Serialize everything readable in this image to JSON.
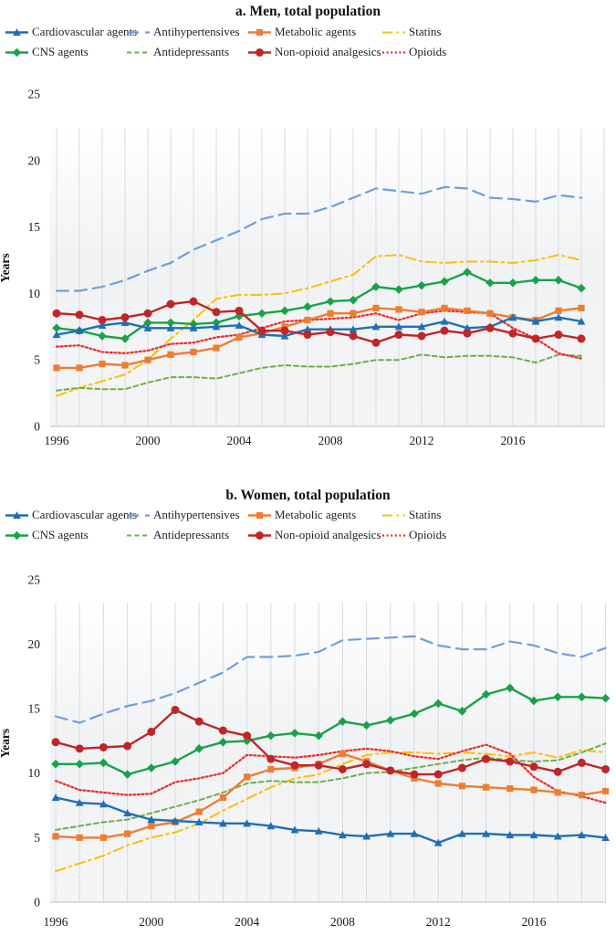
{
  "page": {
    "background": "#ffffff",
    "grid_color": "#d8dbde",
    "axis_color": "#c6cbd0"
  },
  "chart_data": [
    {
      "type": "line",
      "title": "a. Men, total population",
      "ylabel": "Years",
      "xlabel": "",
      "x": [
        1996,
        1997,
        1998,
        1999,
        2000,
        2001,
        2002,
        2003,
        2004,
        2005,
        2006,
        2007,
        2008,
        2009,
        2010,
        2011,
        2012,
        2013,
        2014,
        2015,
        2016,
        2017,
        2018,
        2019
      ],
      "xticks": [
        1996,
        2000,
        2004,
        2008,
        2012,
        2016
      ],
      "yticks": [
        0,
        5,
        10,
        15,
        20,
        25
      ],
      "ylim": [
        0,
        25
      ],
      "grid": "vertical",
      "legend_position": "top",
      "series": [
        {
          "name": "Cardiovascular agents",
          "color": "#1f6fb5",
          "marker": "triangle",
          "dash": "",
          "width": 2.4,
          "values": [
            6.9,
            7.2,
            7.6,
            7.8,
            7.4,
            7.4,
            7.4,
            7.5,
            7.6,
            6.9,
            6.8,
            7.3,
            7.3,
            7.3,
            7.5,
            7.5,
            7.5,
            7.9,
            7.4,
            7.5,
            8.2,
            7.9,
            8.2,
            7.9
          ]
        },
        {
          "name": "Antihypertensives",
          "color": "#6f9fd8",
          "marker": "",
          "dash": "13 7",
          "width": 2.2,
          "values": [
            10.2,
            10.2,
            10.5,
            11.0,
            11.7,
            12.3,
            13.3,
            14.0,
            14.7,
            15.6,
            16.0,
            16.0,
            16.5,
            17.2,
            17.9,
            17.7,
            17.5,
            18.0,
            17.9,
            17.2,
            17.1,
            16.9,
            17.4,
            17.2
          ]
        },
        {
          "name": "Metabolic agents",
          "color": "#ee7d31",
          "marker": "square",
          "dash": "",
          "width": 2.4,
          "values": [
            4.4,
            4.4,
            4.7,
            4.6,
            5.0,
            5.4,
            5.6,
            5.9,
            6.7,
            7.0,
            7.5,
            8.0,
            8.5,
            8.5,
            8.9,
            8.8,
            8.6,
            8.9,
            8.7,
            8.5,
            8.2,
            8.0,
            8.7,
            8.9
          ]
        },
        {
          "name": "Statins",
          "color": "#fdc010",
          "marker": "",
          "dash": "11 4.5 2.5 4.5",
          "width": 2.1,
          "values": [
            2.3,
            2.9,
            3.4,
            3.9,
            5.0,
            6.6,
            8.0,
            9.6,
            9.9,
            9.9,
            10.0,
            10.4,
            10.9,
            11.4,
            12.8,
            12.9,
            12.4,
            12.3,
            12.4,
            12.4,
            12.3,
            12.5,
            12.9,
            12.5
          ]
        },
        {
          "name": "CNS agents",
          "color": "#19a24a",
          "marker": "diamond",
          "dash": "",
          "width": 2.4,
          "values": [
            7.4,
            7.2,
            6.8,
            6.6,
            7.8,
            7.8,
            7.7,
            7.8,
            8.3,
            8.5,
            8.7,
            9.0,
            9.4,
            9.5,
            10.5,
            10.3,
            10.6,
            10.9,
            11.6,
            10.8,
            10.8,
            11.0,
            11.0,
            10.4
          ]
        },
        {
          "name": "Antidepressants",
          "color": "#6fae49",
          "marker": "",
          "dash": "5 3.5",
          "width": 2.0,
          "values": [
            2.7,
            2.9,
            2.8,
            2.8,
            3.3,
            3.7,
            3.7,
            3.6,
            4.0,
            4.4,
            4.6,
            4.5,
            4.5,
            4.7,
            5.0,
            5.0,
            5.4,
            5.2,
            5.3,
            5.3,
            5.2,
            4.8,
            5.4,
            5.3
          ]
        },
        {
          "name": "Non-opioid analgesics",
          "color": "#bf2629",
          "marker": "circle",
          "dash": "",
          "width": 2.4,
          "values": [
            8.5,
            8.4,
            8.0,
            8.2,
            8.5,
            9.2,
            9.4,
            8.6,
            8.7,
            7.2,
            7.2,
            6.9,
            7.1,
            6.8,
            6.3,
            6.9,
            6.8,
            7.2,
            7.0,
            7.4,
            7.0,
            6.6,
            6.9,
            6.6
          ]
        },
        {
          "name": "Opioids",
          "color": "#ee2a24",
          "marker": "",
          "dash": "2 2.6",
          "width": 2.2,
          "values": [
            6.0,
            6.1,
            5.6,
            5.5,
            5.7,
            6.2,
            6.3,
            6.7,
            6.9,
            7.4,
            7.9,
            8.0,
            8.1,
            8.2,
            8.5,
            8.0,
            8.5,
            8.7,
            8.6,
            8.5,
            7.4,
            6.6,
            5.5,
            5.1
          ]
        }
      ]
    },
    {
      "type": "line",
      "title": "b. Women, total population",
      "ylabel": "Years",
      "xlabel": "",
      "x": [
        1996,
        1997,
        1998,
        1999,
        2000,
        2001,
        2002,
        2003,
        2004,
        2005,
        2006,
        2007,
        2008,
        2009,
        2010,
        2011,
        2012,
        2013,
        2014,
        2015,
        2016,
        2017,
        2018,
        2019
      ],
      "xticks": [
        1996,
        2000,
        2004,
        2008,
        2012,
        2016
      ],
      "yticks": [
        0,
        5,
        10,
        15,
        20,
        25
      ],
      "ylim": [
        0,
        25
      ],
      "grid": "vertical",
      "legend_position": "top",
      "series": [
        {
          "name": "Cardiovascular agents",
          "color": "#1f6fb5",
          "marker": "triangle",
          "dash": "",
          "width": 2.4,
          "values": [
            8.1,
            7.7,
            7.6,
            6.9,
            6.4,
            6.3,
            6.2,
            6.1,
            6.1,
            5.9,
            5.6,
            5.5,
            5.2,
            5.1,
            5.3,
            5.3,
            4.6,
            5.3,
            5.3,
            5.2,
            5.2,
            5.1,
            5.2,
            5.0
          ]
        },
        {
          "name": "Antihypertensives",
          "color": "#6f9fd8",
          "marker": "",
          "dash": "13 7",
          "width": 2.2,
          "values": [
            14.4,
            13.9,
            14.6,
            15.2,
            15.6,
            16.2,
            17.0,
            17.8,
            19.0,
            19.0,
            19.1,
            19.4,
            20.3,
            20.4,
            20.5,
            20.6,
            19.9,
            19.6,
            19.6,
            20.2,
            19.9,
            19.3,
            19.0,
            19.7
          ]
        },
        {
          "name": "Metabolic agents",
          "color": "#ee7d31",
          "marker": "square",
          "dash": "",
          "width": 2.4,
          "values": [
            5.1,
            5.0,
            5.0,
            5.3,
            5.9,
            6.2,
            7.0,
            8.1,
            9.7,
            10.3,
            10.4,
            10.7,
            11.5,
            10.9,
            10.2,
            9.6,
            9.2,
            9.0,
            8.9,
            8.8,
            8.7,
            8.5,
            8.3,
            8.6
          ]
        },
        {
          "name": "Statins",
          "color": "#fdc010",
          "marker": "",
          "dash": "11 4.5 2.5 4.5",
          "width": 2.1,
          "values": [
            2.4,
            3.0,
            3.6,
            4.4,
            5.0,
            5.4,
            6.1,
            7.1,
            8.0,
            8.9,
            9.6,
            9.9,
            10.7,
            11.4,
            11.6,
            11.6,
            11.5,
            11.6,
            11.5,
            11.3,
            11.6,
            11.2,
            11.8,
            11.6
          ]
        },
        {
          "name": "CNS agents",
          "color": "#19a24a",
          "marker": "diamond",
          "dash": "",
          "width": 2.4,
          "values": [
            10.7,
            10.7,
            10.8,
            9.9,
            10.4,
            10.9,
            11.9,
            12.4,
            12.5,
            12.9,
            13.1,
            12.9,
            14.0,
            13.7,
            14.1,
            14.6,
            15.4,
            14.8,
            16.1,
            16.6,
            15.6,
            15.9,
            15.9,
            15.8
          ]
        },
        {
          "name": "Antidepressants",
          "color": "#6fae49",
          "marker": "",
          "dash": "5 3.5",
          "width": 2.0,
          "values": [
            5.6,
            5.9,
            6.2,
            6.4,
            6.9,
            7.4,
            7.9,
            8.5,
            9.2,
            9.4,
            9.3,
            9.3,
            9.6,
            10.0,
            10.1,
            10.4,
            10.7,
            11.0,
            11.2,
            11.0,
            10.9,
            11.0,
            11.6,
            12.3
          ]
        },
        {
          "name": "Non-opioid analgesics",
          "color": "#bf2629",
          "marker": "circle",
          "dash": "",
          "width": 2.4,
          "values": [
            12.4,
            11.9,
            12.0,
            12.1,
            13.2,
            14.9,
            14.0,
            13.3,
            12.9,
            11.1,
            10.6,
            10.6,
            10.3,
            10.7,
            10.2,
            9.9,
            9.9,
            10.4,
            11.1,
            10.9,
            10.5,
            10.1,
            10.8,
            10.3
          ]
        },
        {
          "name": "Opioids",
          "color": "#ee2a24",
          "marker": "",
          "dash": "2 2.6",
          "width": 2.2,
          "values": [
            9.4,
            8.7,
            8.5,
            8.3,
            8.4,
            9.3,
            9.6,
            10.0,
            11.4,
            11.3,
            11.2,
            11.4,
            11.7,
            11.9,
            11.7,
            11.3,
            11.1,
            11.7,
            12.2,
            11.5,
            9.7,
            8.6,
            8.2,
            7.7
          ]
        }
      ]
    }
  ]
}
